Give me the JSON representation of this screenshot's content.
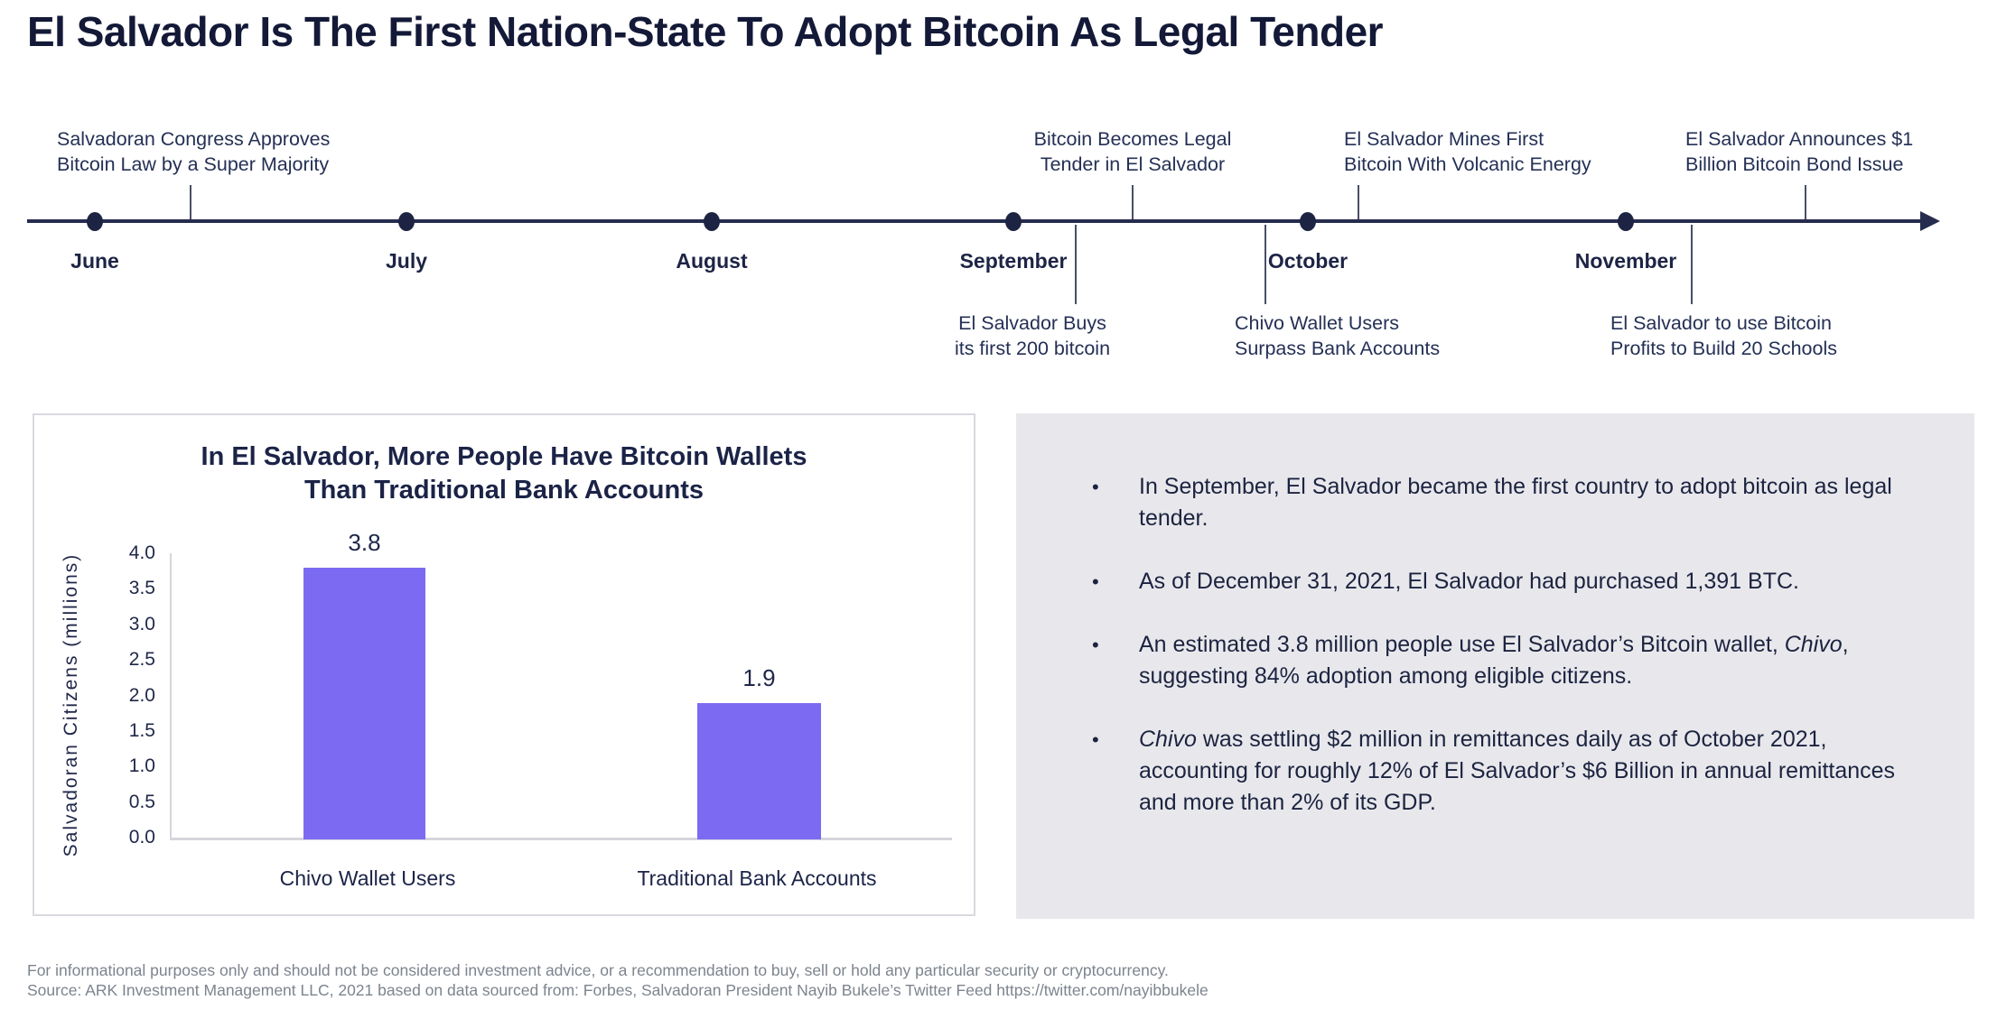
{
  "title": "El Salvador Is The First Nation-State To Adopt Bitcoin As Legal Tender",
  "timeline": {
    "months": [
      {
        "label": "June"
      },
      {
        "label": "July"
      },
      {
        "label": "August"
      },
      {
        "label": "September"
      },
      {
        "label": "October"
      },
      {
        "label": "November"
      }
    ],
    "events_above": [
      {
        "text": "Salvadoran Congress Approves\nBitcoin Law by a Super Majority"
      },
      {
        "text": "Bitcoin Becomes Legal\nTender in El Salvador"
      },
      {
        "text": "El Salvador Mines First\nBitcoin With Volcanic Energy"
      },
      {
        "text": "El Salvador Announces $1\nBillion Bitcoin Bond Issue"
      }
    ],
    "events_below": [
      {
        "text": "El Salvador Buys\nits first 200 bitcoin"
      },
      {
        "text": "Chivo Wallet Users\nSurpass Bank Accounts"
      },
      {
        "text": "El Salvador to use Bitcoin\nProfits to Build 20 Schools"
      }
    ]
  },
  "chart_data": {
    "type": "bar",
    "title": "In El Salvador, More People Have Bitcoin Wallets\nThan Traditional Bank Accounts",
    "categories": [
      "Chivo Wallet Users",
      "Traditional Bank Accounts"
    ],
    "values": [
      3.8,
      1.9
    ],
    "value_labels": [
      "3.8",
      "1.9"
    ],
    "xlabel": "",
    "ylabel": "Salvadoran Citizens (millions)",
    "ylim": [
      0,
      4
    ],
    "yticks": [
      "4.0",
      "3.5",
      "3.0",
      "2.5",
      "2.0",
      "1.5",
      "1.0",
      "0.5",
      "0.0"
    ],
    "grid": false,
    "legend": "none",
    "bar_color": "#7c6bf2"
  },
  "insights": {
    "marker": "•",
    "bullets": [
      {
        "text": "In September, El Salvador became the first country to adopt bitcoin as legal tender."
      },
      {
        "text": "As of December 31, 2021, El Salvador had purchased 1,391 BTC."
      },
      {
        "pre": "An estimated 3.8 million people use El Salvador’s Bitcoin wallet, ",
        "italic": "Chivo",
        "post": ", suggesting 84% adoption among eligible citizens."
      },
      {
        "italic": "Chivo",
        "post": " was settling $2 million in remittances daily as of October 2021, accounting for roughly 12% of El Salvador’s $6 Billion in annual remittances and more than 2% of its GDP."
      }
    ]
  },
  "footer": {
    "line1": "For informational purposes only and should not be considered investment advice, or a recommendation to buy, sell or hold any particular security or cryptocurrency.",
    "line2": "Source: ARK Investment Management LLC, 2021 based on data sourced from: Forbes, Salvadoran President Nayib Bukele’s Twitter Feed https://twitter.com/nayibbukele"
  },
  "colors": {
    "title_navy": "#131937",
    "body_navy": "#232e55",
    "accent_purple": "#7c6bf2",
    "panel_gray": "#e8e8ec",
    "axis_gray": "#d6d6db",
    "footer_gray": "#7d848e"
  }
}
